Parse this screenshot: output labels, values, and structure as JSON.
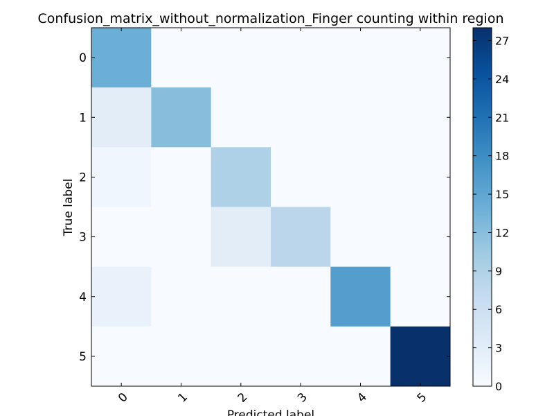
{
  "chart_data": {
    "type": "heatmap",
    "title": "Confusion_matrix_without_normalization_Finger counting within region",
    "xlabel": "Predicted label",
    "ylabel": "True label",
    "x_categories": [
      "0",
      "1",
      "2",
      "3",
      "4",
      "5"
    ],
    "y_categories": [
      "0",
      "1",
      "2",
      "3",
      "4",
      "5"
    ],
    "matrix": [
      [
        14,
        0,
        0,
        0,
        0,
        0
      ],
      [
        3,
        12,
        0,
        0,
        0,
        0
      ],
      [
        1,
        0,
        9,
        0,
        0,
        0
      ],
      [
        0,
        0,
        3,
        8,
        0,
        0
      ],
      [
        2,
        0,
        0,
        0,
        16,
        0
      ],
      [
        0,
        0,
        0,
        0,
        0,
        28
      ]
    ],
    "colormap": "Blues",
    "colorbar": {
      "min": 0,
      "max": 28,
      "ticks": [
        0,
        3,
        6,
        9,
        12,
        15,
        18,
        21,
        24,
        27
      ]
    },
    "grid": false
  }
}
